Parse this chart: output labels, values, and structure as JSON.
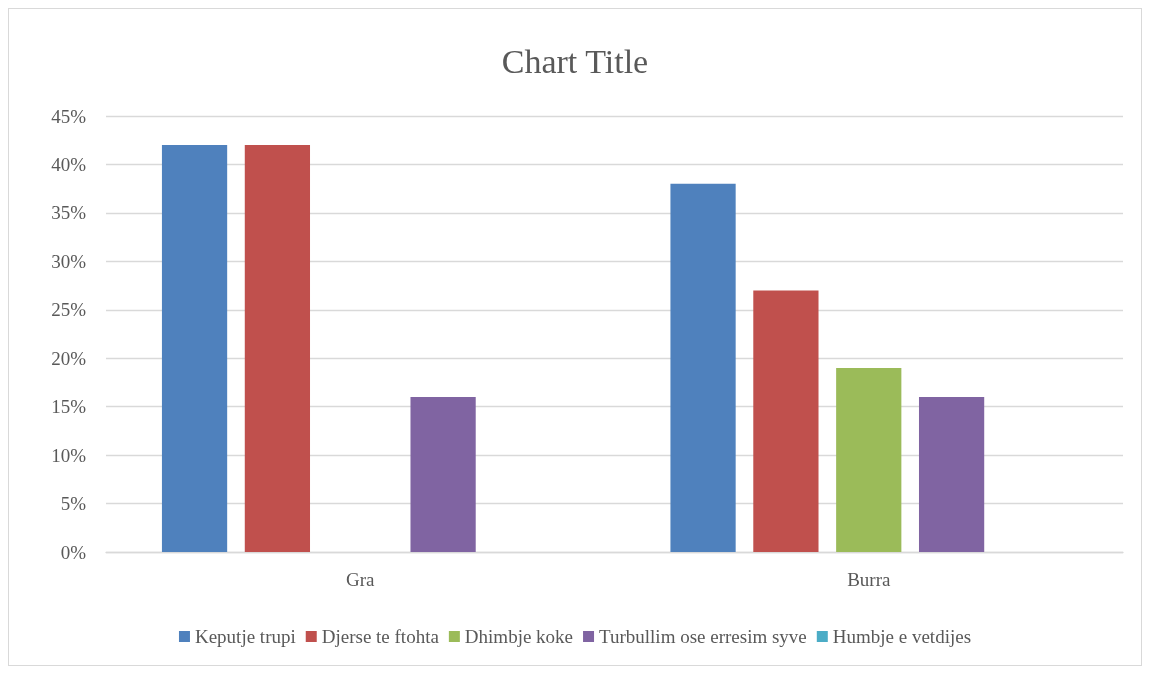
{
  "chart_data": {
    "type": "bar",
    "title": "Chart Title",
    "categories": [
      "Gra",
      "Burra"
    ],
    "series": [
      {
        "name": "Keputje trupi",
        "color": "#4f81bd",
        "values": [
          42,
          38
        ]
      },
      {
        "name": "Djerse te ftohta",
        "color": "#c0504d",
        "values": [
          42,
          27
        ]
      },
      {
        "name": "Dhimbje koke",
        "color": "#9bbb59",
        "values": [
          0,
          19
        ]
      },
      {
        "name": "Turbullim ose erresim syve",
        "color": "#8064a2",
        "values": [
          16,
          16
        ]
      },
      {
        "name": "Humbje e vetdijes",
        "color": "#4bacc6",
        "values": [
          0,
          0
        ]
      }
    ],
    "ylim": [
      0,
      45
    ],
    "yticks": [
      {
        "value": 0,
        "label": "0%"
      },
      {
        "value": 5,
        "label": "5%"
      },
      {
        "value": 10,
        "label": "10%"
      },
      {
        "value": 15,
        "label": "15%"
      },
      {
        "value": 20,
        "label": "20%"
      },
      {
        "value": 25,
        "label": "25%"
      },
      {
        "value": 30,
        "label": "30%"
      },
      {
        "value": 35,
        "label": "35%"
      },
      {
        "value": 40,
        "label": "40%"
      },
      {
        "value": 45,
        "label": "45%"
      }
    ],
    "grid": "y",
    "legend": "bottom"
  }
}
